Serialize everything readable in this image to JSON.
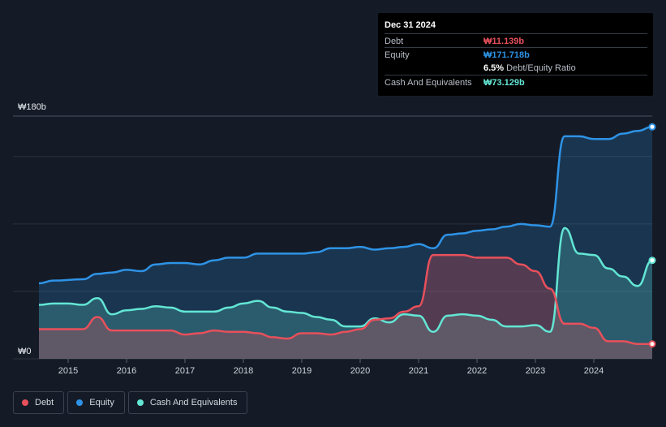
{
  "tooltip": {
    "date": "Dec 31 2024",
    "debt_label": "Debt",
    "debt_value": "₩11.139b",
    "equity_label": "Equity",
    "equity_value": "₩171.718b",
    "ratio_pct": "6.5%",
    "ratio_label": "Debt/Equity Ratio",
    "cash_label": "Cash And Equivalents",
    "cash_value": "₩73.129b"
  },
  "legend": {
    "debt": "Debt",
    "equity": "Equity",
    "cash": "Cash And Equivalents"
  },
  "colors": {
    "debt": "#e8505b",
    "equity": "#2e93e6",
    "cash": "#63e6d4",
    "background": "#151b26"
  },
  "chart_data": {
    "type": "area",
    "title": "",
    "xlabel": "",
    "ylabel": "",
    "y_top_label": "₩180b",
    "y_bottom_label": "₩0",
    "ylim": [
      0,
      180
    ],
    "xlim": [
      2014.5,
      2025.0
    ],
    "x_ticks": [
      "2015",
      "2016",
      "2017",
      "2018",
      "2019",
      "2020",
      "2021",
      "2022",
      "2023",
      "2024"
    ],
    "series": [
      {
        "name": "Equity",
        "color": "#2e93e6",
        "points": [
          [
            2014.5,
            56
          ],
          [
            2014.75,
            58
          ],
          [
            2015.25,
            59
          ],
          [
            2015.5,
            63
          ],
          [
            2015.75,
            64
          ],
          [
            2016,
            66
          ],
          [
            2016.25,
            65
          ],
          [
            2016.5,
            70
          ],
          [
            2016.75,
            71
          ],
          [
            2017,
            71
          ],
          [
            2017.25,
            70
          ],
          [
            2017.5,
            73
          ],
          [
            2017.75,
            75
          ],
          [
            2018,
            75
          ],
          [
            2018.25,
            78
          ],
          [
            2018.5,
            78
          ],
          [
            2018.75,
            78
          ],
          [
            2019,
            78
          ],
          [
            2019.25,
            79
          ],
          [
            2019.5,
            82
          ],
          [
            2019.75,
            82
          ],
          [
            2020,
            83
          ],
          [
            2020.25,
            81
          ],
          [
            2020.5,
            82
          ],
          [
            2020.75,
            83
          ],
          [
            2021,
            85
          ],
          [
            2021.25,
            82
          ],
          [
            2021.5,
            92
          ],
          [
            2021.75,
            93
          ],
          [
            2022,
            95
          ],
          [
            2022.25,
            96
          ],
          [
            2022.5,
            98
          ],
          [
            2022.75,
            100
          ],
          [
            2023,
            99
          ],
          [
            2023.25,
            98
          ],
          [
            2023.5,
            165
          ],
          [
            2023.75,
            165
          ],
          [
            2024,
            163
          ],
          [
            2024.25,
            163
          ],
          [
            2024.5,
            167
          ],
          [
            2024.75,
            169
          ],
          [
            2025.0,
            172
          ]
        ]
      },
      {
        "name": "Cash And Equivalents",
        "color": "#63e6d4",
        "points": [
          [
            2014.5,
            40
          ],
          [
            2014.75,
            41
          ],
          [
            2015.0,
            41
          ],
          [
            2015.25,
            40
          ],
          [
            2015.5,
            45
          ],
          [
            2015.75,
            33
          ],
          [
            2016,
            36
          ],
          [
            2016.25,
            37
          ],
          [
            2016.5,
            39
          ],
          [
            2016.75,
            38
          ],
          [
            2017,
            35
          ],
          [
            2017.25,
            35
          ],
          [
            2017.5,
            35
          ],
          [
            2017.75,
            38
          ],
          [
            2018,
            41
          ],
          [
            2018.25,
            43
          ],
          [
            2018.5,
            38
          ],
          [
            2018.75,
            35
          ],
          [
            2019,
            34
          ],
          [
            2019.25,
            31
          ],
          [
            2019.5,
            29
          ],
          [
            2019.75,
            24
          ],
          [
            2020,
            24
          ],
          [
            2020.25,
            30
          ],
          [
            2020.5,
            27
          ],
          [
            2020.75,
            33
          ],
          [
            2021,
            32
          ],
          [
            2021.25,
            20
          ],
          [
            2021.5,
            32
          ],
          [
            2021.75,
            33
          ],
          [
            2022,
            32
          ],
          [
            2022.25,
            29
          ],
          [
            2022.5,
            24
          ],
          [
            2022.75,
            24
          ],
          [
            2023,
            25
          ],
          [
            2023.25,
            20
          ],
          [
            2023.5,
            97
          ],
          [
            2023.75,
            78
          ],
          [
            2024,
            77
          ],
          [
            2024.25,
            67
          ],
          [
            2024.5,
            61
          ],
          [
            2024.75,
            54
          ],
          [
            2025.0,
            73
          ]
        ]
      },
      {
        "name": "Debt",
        "color": "#e8505b",
        "points": [
          [
            2014.5,
            22
          ],
          [
            2014.75,
            22
          ],
          [
            2015.0,
            22
          ],
          [
            2015.25,
            22
          ],
          [
            2015.5,
            31
          ],
          [
            2015.75,
            21
          ],
          [
            2016,
            21
          ],
          [
            2016.25,
            21
          ],
          [
            2016.5,
            21
          ],
          [
            2016.75,
            21
          ],
          [
            2017,
            18
          ],
          [
            2017.25,
            19
          ],
          [
            2017.5,
            21
          ],
          [
            2017.75,
            20
          ],
          [
            2018,
            20
          ],
          [
            2018.25,
            19
          ],
          [
            2018.5,
            16
          ],
          [
            2018.75,
            15
          ],
          [
            2019,
            19
          ],
          [
            2019.25,
            19
          ],
          [
            2019.5,
            18
          ],
          [
            2019.75,
            20
          ],
          [
            2020,
            22
          ],
          [
            2020.25,
            29
          ],
          [
            2020.5,
            30
          ],
          [
            2020.75,
            35
          ],
          [
            2021,
            39
          ],
          [
            2021.25,
            77
          ],
          [
            2021.5,
            77
          ],
          [
            2021.75,
            77
          ],
          [
            2022,
            75
          ],
          [
            2022.25,
            75
          ],
          [
            2022.5,
            75
          ],
          [
            2022.75,
            70
          ],
          [
            2023,
            65
          ],
          [
            2023.25,
            52
          ],
          [
            2023.5,
            26
          ],
          [
            2023.75,
            26
          ],
          [
            2024,
            23
          ],
          [
            2024.25,
            13
          ],
          [
            2024.5,
            13
          ],
          [
            2024.75,
            11
          ],
          [
            2025.0,
            11
          ]
        ]
      }
    ]
  }
}
